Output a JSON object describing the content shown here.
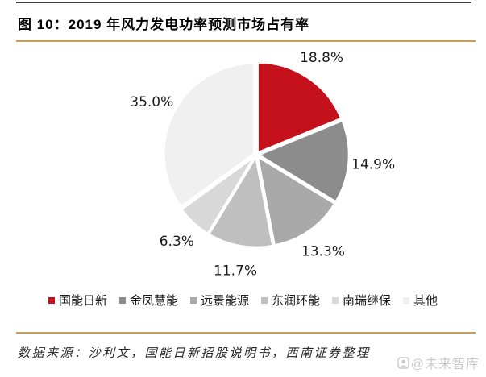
{
  "figure": {
    "title": "图 10：2019 年风力发电功率预测市场占有率",
    "source_note": "数据来源：沙利文，国能日新招股说明书，西南证券整理",
    "watermark": "@未来智库"
  },
  "chart_data": {
    "type": "pie",
    "title": "2019 年风力发电功率预测市场占有率",
    "categories": [
      "国能日新",
      "金凤慧能",
      "远景能源",
      "东润环能",
      "南瑞继保",
      "其他"
    ],
    "values": [
      18.8,
      14.9,
      13.3,
      11.7,
      6.3,
      35.0
    ],
    "labels": [
      "18.8%",
      "14.9%",
      "13.3%",
      "11.7%",
      "6.3%",
      "35.0%"
    ],
    "colors": [
      "#C4111B",
      "#8C8C8C",
      "#A9A9A9",
      "#BFBFBF",
      "#D8D8D8",
      "#F0F0F0"
    ],
    "start_angle_deg": -90,
    "direction": "clockwise",
    "legend_position": "bottom",
    "label_position": "outside"
  },
  "style_colors": {
    "accent_red": "#C4111B",
    "rule_dark": "#3F3F3F",
    "rule_gold": "#C3A05F",
    "label_text": "#1A1A1A",
    "watermark_gray": "#C9C9C9"
  }
}
